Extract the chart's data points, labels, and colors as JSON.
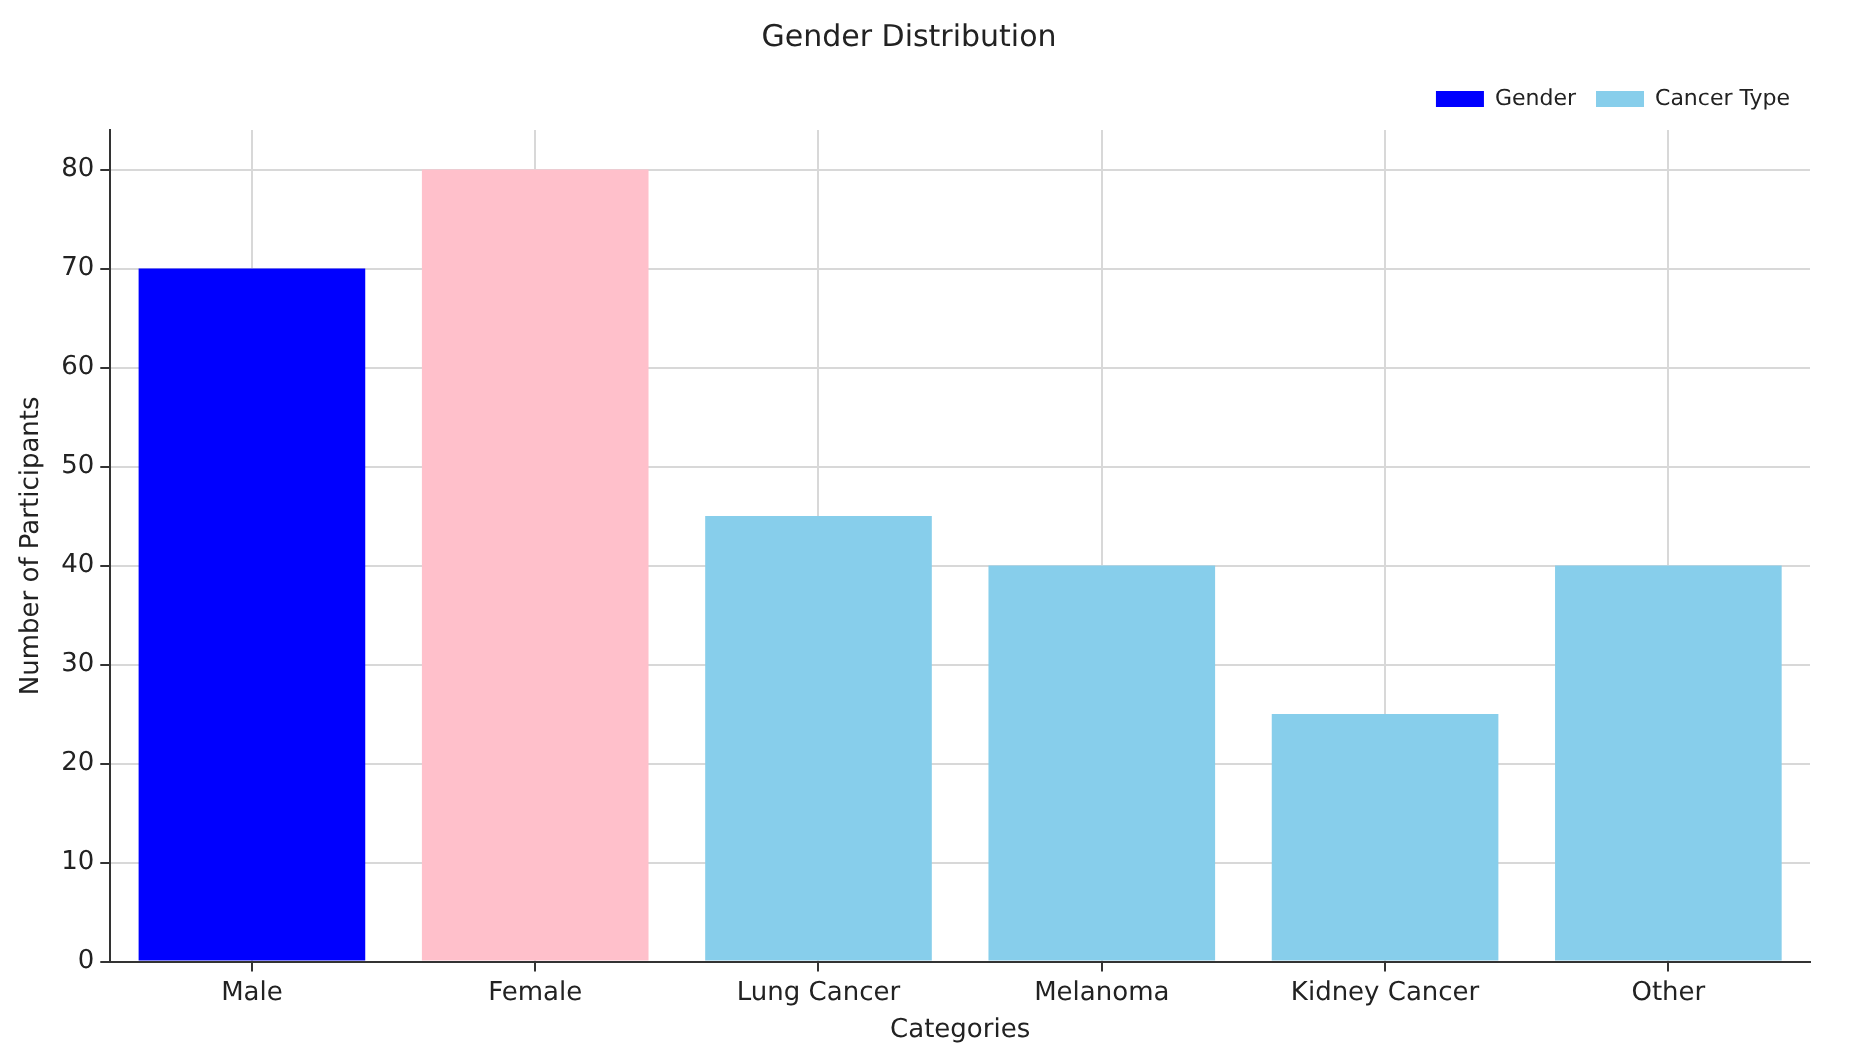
{
  "chart_data": {
    "type": "bar",
    "title": "Gender Distribution",
    "xlabel": "Categories",
    "ylabel": "Number of Participants",
    "categories": [
      "Male",
      "Female",
      "Lung Cancer",
      "Melanoma",
      "Kidney Cancer",
      "Other"
    ],
    "series": [
      {
        "name": "Gender",
        "color": "#0000ff",
        "colors": [
          "#0000ff",
          "#ffc0cb",
          null,
          null,
          null,
          null
        ],
        "values": [
          70,
          80,
          null,
          null,
          null,
          null
        ]
      },
      {
        "name": "Cancer Type",
        "color": "#87ceeb",
        "values": [
          null,
          null,
          45,
          40,
          25,
          40
        ]
      }
    ],
    "ylim": [
      0,
      84
    ],
    "yticks": [
      0,
      10,
      20,
      30,
      40,
      50,
      60,
      70,
      80
    ],
    "grid": true,
    "legend": "top right"
  }
}
